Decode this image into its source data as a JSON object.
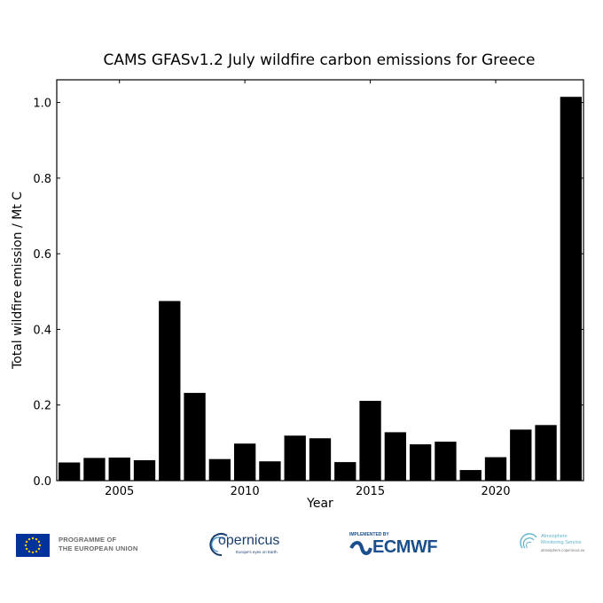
{
  "chart_data": {
    "type": "bar",
    "title": "CAMS GFASv1.2 July wildfire carbon emissions for Greece",
    "xlabel": "Year",
    "ylabel": "Total wildfire emission / Mt C",
    "x": [
      2003,
      2004,
      2005,
      2006,
      2007,
      2008,
      2009,
      2010,
      2011,
      2012,
      2013,
      2014,
      2015,
      2016,
      2017,
      2018,
      2019,
      2020,
      2021,
      2022,
      2023
    ],
    "values": [
      0.048,
      0.06,
      0.061,
      0.054,
      0.475,
      0.232,
      0.057,
      0.098,
      0.051,
      0.119,
      0.112,
      0.049,
      0.211,
      0.128,
      0.096,
      0.103,
      0.028,
      0.062,
      0.135,
      0.147,
      1.015
    ],
    "xlim": [
      2002.5,
      2023.5
    ],
    "ylim": [
      0.0,
      1.06
    ],
    "x_ticks": [
      2005,
      2010,
      2015,
      2020
    ],
    "x_tick_labels": [
      "2005",
      "2010",
      "2015",
      "2020"
    ],
    "y_ticks": [
      0.0,
      0.2,
      0.4,
      0.6,
      0.8,
      1.0
    ],
    "y_tick_labels": [
      "0.0",
      "0.2",
      "0.4",
      "0.6",
      "0.8",
      "1.0"
    ],
    "bar_color": "#000000",
    "grid": false,
    "legend": "none"
  },
  "footer": {
    "eu_line1": "PROGRAMME OF",
    "eu_line2": "THE EUROPEAN UNION",
    "copernicus_name": "opernicus",
    "copernicus_sub": "Europe's eyes on Earth",
    "ecmwf_sub": "IMPLEMENTED BY",
    "ecmwf_name": "ECMWF",
    "cams_line1": "Atmosphere",
    "cams_line2": "Monitoring Service",
    "cams_url": "atmosphere.copernicus.eu",
    "colors": {
      "eu_blue": "#003399",
      "eu_star": "#ffcc00",
      "copernicus_blue": "#1a3e6e",
      "ecmwf_blue": "#1a4f8c",
      "cams_teal": "#5fb3c8"
    }
  }
}
